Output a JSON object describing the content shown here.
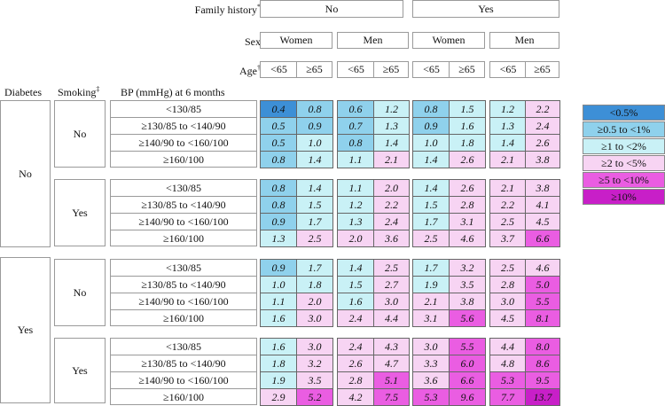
{
  "chart_data": {
    "type": "heatmap",
    "header": {
      "family_history_label": "Family history",
      "family_history_mark": "*",
      "family_history": [
        "No",
        "Yes"
      ],
      "sex_label": "Sex",
      "sex": [
        "Women",
        "Men"
      ],
      "age_label": "Age",
      "age_mark": "†",
      "age": [
        "<65",
        "≥65"
      ],
      "diabetes_label": "Diabetes",
      "smoking_label": "Smoking",
      "smoking_mark": "‡",
      "bp_label": "BP (mmHg) at 6 months"
    },
    "diabetes": [
      "No",
      "Yes"
    ],
    "smoking": [
      "No",
      "Yes"
    ],
    "bp_levels": [
      "<130/85",
      "≥130/85 to <140/90",
      "≥140/90 to <160/100",
      "≥160/100"
    ],
    "column_order": "Family history No: Women <65, Women ≥65, Men <65, Men ≥65; Family history Yes: Women <65, Women ≥65, Men <65, Men ≥65",
    "values": [
      [
        [
          0.4,
          0.8,
          0.6,
          1.2,
          0.8,
          1.5,
          1.2,
          2.2
        ],
        [
          0.5,
          0.9,
          0.7,
          1.3,
          0.9,
          1.6,
          1.3,
          2.4
        ],
        [
          0.5,
          1.0,
          0.8,
          1.4,
          1.0,
          1.8,
          1.4,
          2.6
        ],
        [
          0.8,
          1.4,
          1.1,
          2.1,
          1.4,
          2.6,
          2.1,
          3.8
        ]
      ],
      [
        [
          0.8,
          1.4,
          1.1,
          2.0,
          1.4,
          2.6,
          2.1,
          3.8
        ],
        [
          0.8,
          1.5,
          1.2,
          2.2,
          1.5,
          2.8,
          2.2,
          4.1
        ],
        [
          0.9,
          1.7,
          1.3,
          2.4,
          1.7,
          3.1,
          2.5,
          4.5
        ],
        [
          1.3,
          2.5,
          2.0,
          3.6,
          2.5,
          4.6,
          3.7,
          6.6
        ]
      ],
      [
        [
          0.9,
          1.7,
          1.4,
          2.5,
          1.7,
          3.2,
          2.5,
          4.6
        ],
        [
          1.0,
          1.8,
          1.5,
          2.7,
          1.9,
          3.5,
          2.8,
          5.0
        ],
        [
          1.1,
          2.0,
          1.6,
          3.0,
          2.1,
          3.8,
          3.0,
          5.5
        ],
        [
          1.6,
          3.0,
          2.4,
          4.4,
          3.1,
          5.6,
          4.5,
          8.1
        ]
      ],
      [
        [
          1.6,
          3.0,
          2.4,
          4.3,
          3.0,
          5.5,
          4.4,
          8.0
        ],
        [
          1.8,
          3.2,
          2.6,
          4.7,
          3.3,
          6.0,
          4.8,
          8.6
        ],
        [
          1.9,
          3.5,
          2.8,
          5.1,
          3.6,
          6.6,
          5.3,
          9.5
        ],
        [
          2.9,
          5.2,
          4.2,
          7.5,
          5.3,
          9.6,
          7.7,
          13.7
        ]
      ]
    ],
    "legend": [
      {
        "label": "<0.5%",
        "color": "#3d8fd6"
      },
      {
        "label": "≥0.5 to <1%",
        "color": "#8fd1ec"
      },
      {
        "label": "≥1 to <2%",
        "color": "#c9f1f6"
      },
      {
        "label": "≥2 to <5%",
        "color": "#f7d4f3"
      },
      {
        "label": "≥5 to <10%",
        "color": "#ea5de2"
      },
      {
        "label": "≥10%",
        "color": "#c81fc8"
      }
    ],
    "colors": {
      "lt0_5": "#3d8fd6",
      "lt1": "#8fd1ec",
      "lt2": "#c9f1f6",
      "lt5": "#f7d4f3",
      "lt10": "#ea5de2",
      "ge10": "#c81fc8"
    }
  }
}
